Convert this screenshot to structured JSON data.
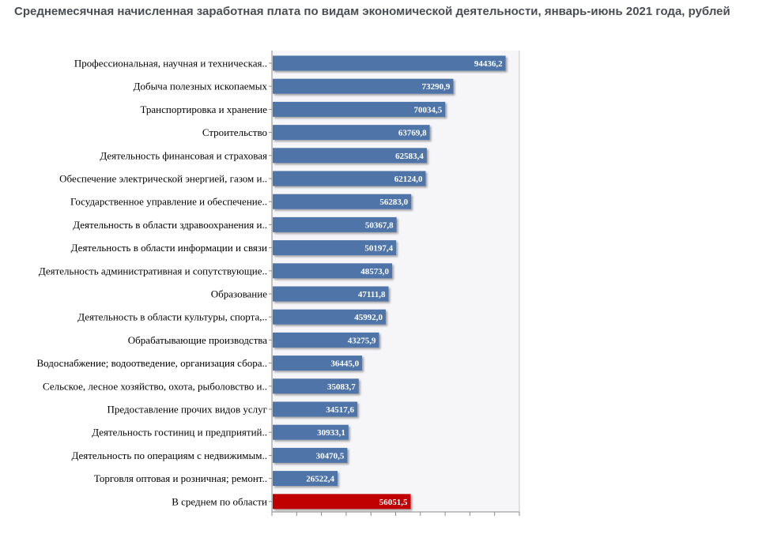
{
  "chart_data": {
    "type": "bar",
    "orientation": "horizontal",
    "title": "Среднемесячная начисленная заработная плата по видам экономической деятельности,  январь-июнь 2021 года, рублей",
    "categories": [
      "Профессиональная, научная и техническая..",
      "Добыча полезных ископаемых",
      "Транспортировка и хранение",
      "Строительство",
      "Деятельность финансовая и страховая",
      "Обеспечение электрической энергией, газом и..",
      "Государственное управление и обеспечение..",
      "Деятельность в области здравоохранения и..",
      "Деятельность в области информации и связи",
      "Деятельность административная и сопутствующие..",
      "Образование",
      "Деятельность в области культуры, спорта,..",
      "Обрабатывающие производства",
      "Водоснабжение; водоотведение, организация сбора..",
      "Сельское, лесное хозяйство, охота, рыболовство и..",
      "Предоставление прочих видов услуг",
      "Деятельность гостиниц и предприятий..",
      "Деятельность по операциям с недвижимым..",
      "Торговля оптовая и розничная; ремонт..",
      "В среднем по области"
    ],
    "values": [
      94436.2,
      73290.9,
      70034.5,
      63769.8,
      62583.4,
      62124.0,
      56283.0,
      50367.8,
      50197.4,
      48573.0,
      47111.8,
      45992.0,
      43275.9,
      36445.0,
      35083.7,
      34517.6,
      30933.1,
      30470.5,
      26522.4,
      56051.5
    ],
    "value_labels": [
      "94436,2",
      "73290,9",
      "70034,5",
      "63769,8",
      "62583,4",
      "62124,0",
      "56283,0",
      "50367,8",
      "50197,4",
      "48573,0",
      "47111,8",
      "45992,0",
      "43275,9",
      "36445,0",
      "35083,7",
      "34517,6",
      "30933,1",
      "30470,5",
      "26522,4",
      "56051,5"
    ],
    "highlight_index": 19,
    "xlim": [
      0,
      100000
    ],
    "colors": {
      "bar": "#4f74a8",
      "highlight": "#c00000",
      "plot_bg": "#f6f6f9",
      "axis": "#8a8a8a"
    },
    "grid": false,
    "legend": "none"
  }
}
